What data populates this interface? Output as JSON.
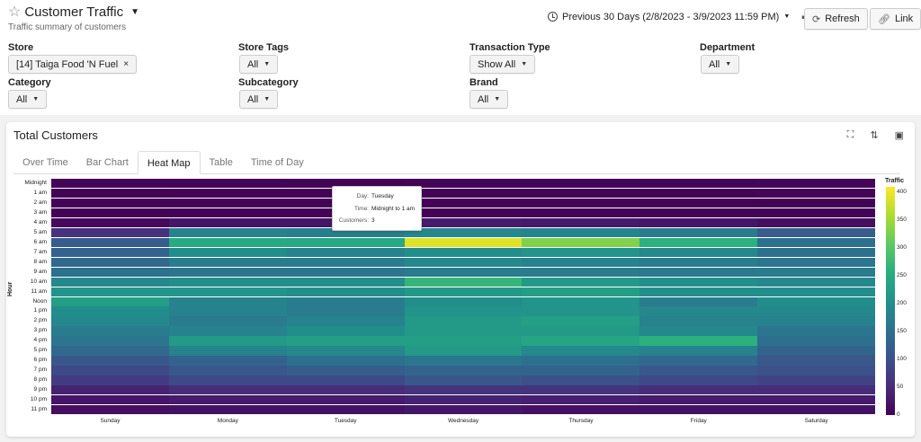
{
  "header": {
    "title": "Customer Traffic",
    "subtitle": "Traffic summary of customers",
    "date_range": "Previous 30 Days (2/8/2023 - 3/9/2023 11:59 PM)",
    "refresh_label": "Refresh",
    "link_label": "Link"
  },
  "filters": {
    "store": {
      "label": "Store",
      "value": "[14] Taiga Food 'N Fuel"
    },
    "store_tags": {
      "label": "Store Tags",
      "value": "All"
    },
    "transaction_type": {
      "label": "Transaction Type",
      "value": "Show All"
    },
    "department": {
      "label": "Department",
      "value": "All"
    },
    "category": {
      "label": "Category",
      "value": "All"
    },
    "subcategory": {
      "label": "Subcategory",
      "value": "All"
    },
    "brand": {
      "label": "Brand",
      "value": "All"
    }
  },
  "panel": {
    "title": "Total Customers",
    "tabs": [
      "Over Time",
      "Bar Chart",
      "Heat Map",
      "Table",
      "Time of Day"
    ],
    "active_tab": "Heat Map"
  },
  "tooltip": {
    "day_label": "Day:",
    "day": "Tuesday",
    "time_label": "Time:",
    "time": "Midnight to 1 am",
    "customers_label": "Customers:",
    "customers": "3"
  },
  "colors": {
    "accent": "#fde725",
    "low": "#440154"
  },
  "chart_data": {
    "type": "heatmap",
    "title": "",
    "xlabel": "",
    "ylabel": "Hour",
    "colorbar_title": "Traffic",
    "colorbar_ticks": [
      "400",
      "350",
      "300",
      "250",
      "200",
      "150",
      "100",
      "50",
      "0"
    ],
    "vmin": 0,
    "vmax": 410,
    "x": [
      "Sunday",
      "Monday",
      "Tuesday",
      "Wednesday",
      "Thursday",
      "Friday",
      "Saturday"
    ],
    "y": [
      "Midnight",
      "1 am",
      "2 am",
      "3 am",
      "4 am",
      "5 am",
      "6 am",
      "7 am",
      "8 am",
      "9 am",
      "10 am",
      "11 am",
      "Noon",
      "1 pm",
      "2 pm",
      "3 pm",
      "4 pm",
      "5 pm",
      "6 pm",
      "7 pm",
      "8 pm",
      "9 pm",
      "10 pm",
      "11 pm"
    ],
    "values": [
      [
        5,
        4,
        3,
        4,
        4,
        5,
        6
      ],
      [
        3,
        2,
        2,
        3,
        3,
        3,
        4
      ],
      [
        2,
        2,
        2,
        2,
        2,
        2,
        3
      ],
      [
        3,
        2,
        2,
        3,
        2,
        3,
        3
      ],
      [
        10,
        25,
        25,
        30,
        28,
        25,
        15
      ],
      [
        60,
        180,
        175,
        190,
        185,
        170,
        120
      ],
      [
        120,
        250,
        245,
        390,
        330,
        260,
        150
      ],
      [
        130,
        200,
        180,
        200,
        210,
        190,
        150
      ],
      [
        140,
        170,
        170,
        190,
        180,
        170,
        160
      ],
      [
        150,
        160,
        160,
        170,
        170,
        165,
        170
      ],
      [
        190,
        200,
        200,
        270,
        220,
        200,
        190
      ],
      [
        210,
        210,
        200,
        220,
        230,
        200,
        200
      ],
      [
        230,
        180,
        170,
        200,
        210,
        170,
        200
      ],
      [
        200,
        180,
        170,
        210,
        210,
        190,
        190
      ],
      [
        190,
        170,
        180,
        220,
        230,
        180,
        180
      ],
      [
        170,
        180,
        200,
        220,
        220,
        190,
        160
      ],
      [
        160,
        220,
        230,
        230,
        240,
        260,
        150
      ],
      [
        140,
        180,
        190,
        220,
        190,
        180,
        130
      ],
      [
        110,
        130,
        150,
        160,
        150,
        140,
        110
      ],
      [
        90,
        110,
        120,
        130,
        130,
        110,
        100
      ],
      [
        70,
        90,
        90,
        110,
        100,
        90,
        80
      ],
      [
        40,
        50,
        50,
        60,
        60,
        50,
        50
      ],
      [
        25,
        30,
        30,
        40,
        35,
        30,
        30
      ],
      [
        15,
        20,
        20,
        25,
        20,
        20,
        20
      ]
    ]
  }
}
